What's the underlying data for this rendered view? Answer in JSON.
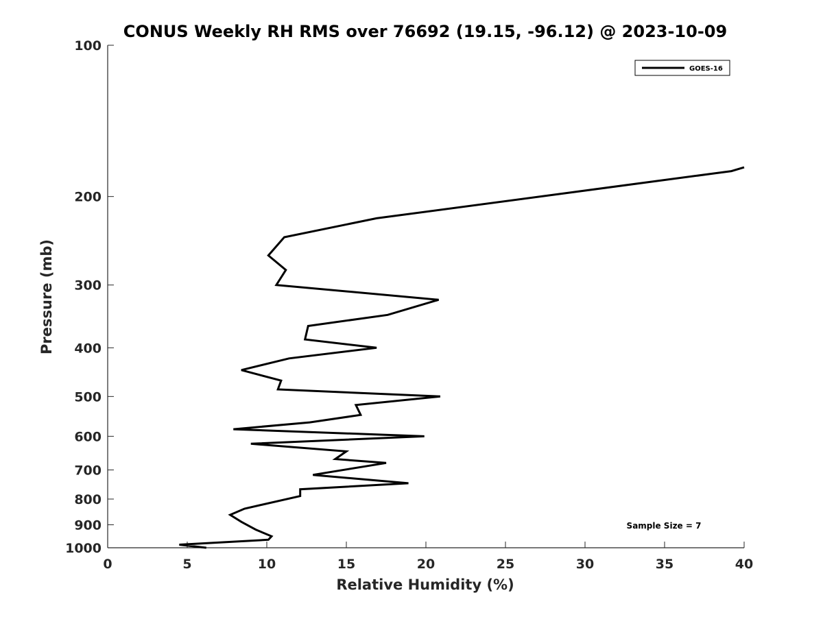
{
  "chart_data": {
    "type": "line",
    "title": "CONUS Weekly RH RMS over 76692 (19.15, -96.12) @ 2023-10-09",
    "xlabel": "Relative Humidity (%)",
    "ylabel": "Pressure (mb)",
    "xlim": [
      0,
      40
    ],
    "ylim": [
      100,
      1000
    ],
    "y_scale": "log",
    "y_reversed": true,
    "x_ticks": [
      0,
      5,
      10,
      15,
      20,
      25,
      30,
      35,
      40
    ],
    "y_ticks": [
      100,
      200,
      300,
      400,
      500,
      600,
      700,
      800,
      900,
      1000
    ],
    "grid": false,
    "legend_position": "top-right",
    "series": [
      {
        "name": "GOES-16",
        "color": "#000000",
        "points": [
          [
            40.0,
            175
          ],
          [
            39.2,
            178
          ],
          [
            16.9,
            221
          ],
          [
            11.1,
            241
          ],
          [
            10.1,
            262
          ],
          [
            11.2,
            280
          ],
          [
            10.6,
            300
          ],
          [
            20.8,
            321
          ],
          [
            17.6,
            344
          ],
          [
            12.6,
            362
          ],
          [
            12.4,
            385
          ],
          [
            16.9,
            400
          ],
          [
            11.4,
            420
          ],
          [
            8.4,
            443
          ],
          [
            10.9,
            465
          ],
          [
            10.7,
            484
          ],
          [
            20.9,
            500
          ],
          [
            15.6,
            520
          ],
          [
            15.9,
            544
          ],
          [
            12.7,
            563
          ],
          [
            7.9,
            581
          ],
          [
            19.9,
            600
          ],
          [
            9.0,
            621
          ],
          [
            15.0,
            643
          ],
          [
            14.3,
            666
          ],
          [
            17.5,
            678
          ],
          [
            12.9,
            716
          ],
          [
            18.9,
            744
          ],
          [
            12.1,
            765
          ],
          [
            12.1,
            789
          ],
          [
            8.6,
            836
          ],
          [
            7.7,
            860
          ],
          [
            8.4,
            888
          ],
          [
            9.3,
            920
          ],
          [
            10.3,
            949
          ],
          [
            10.1,
            964
          ],
          [
            4.5,
            986
          ],
          [
            6.2,
            1000
          ]
        ]
      }
    ],
    "annotation": "Sample Size = 7"
  }
}
